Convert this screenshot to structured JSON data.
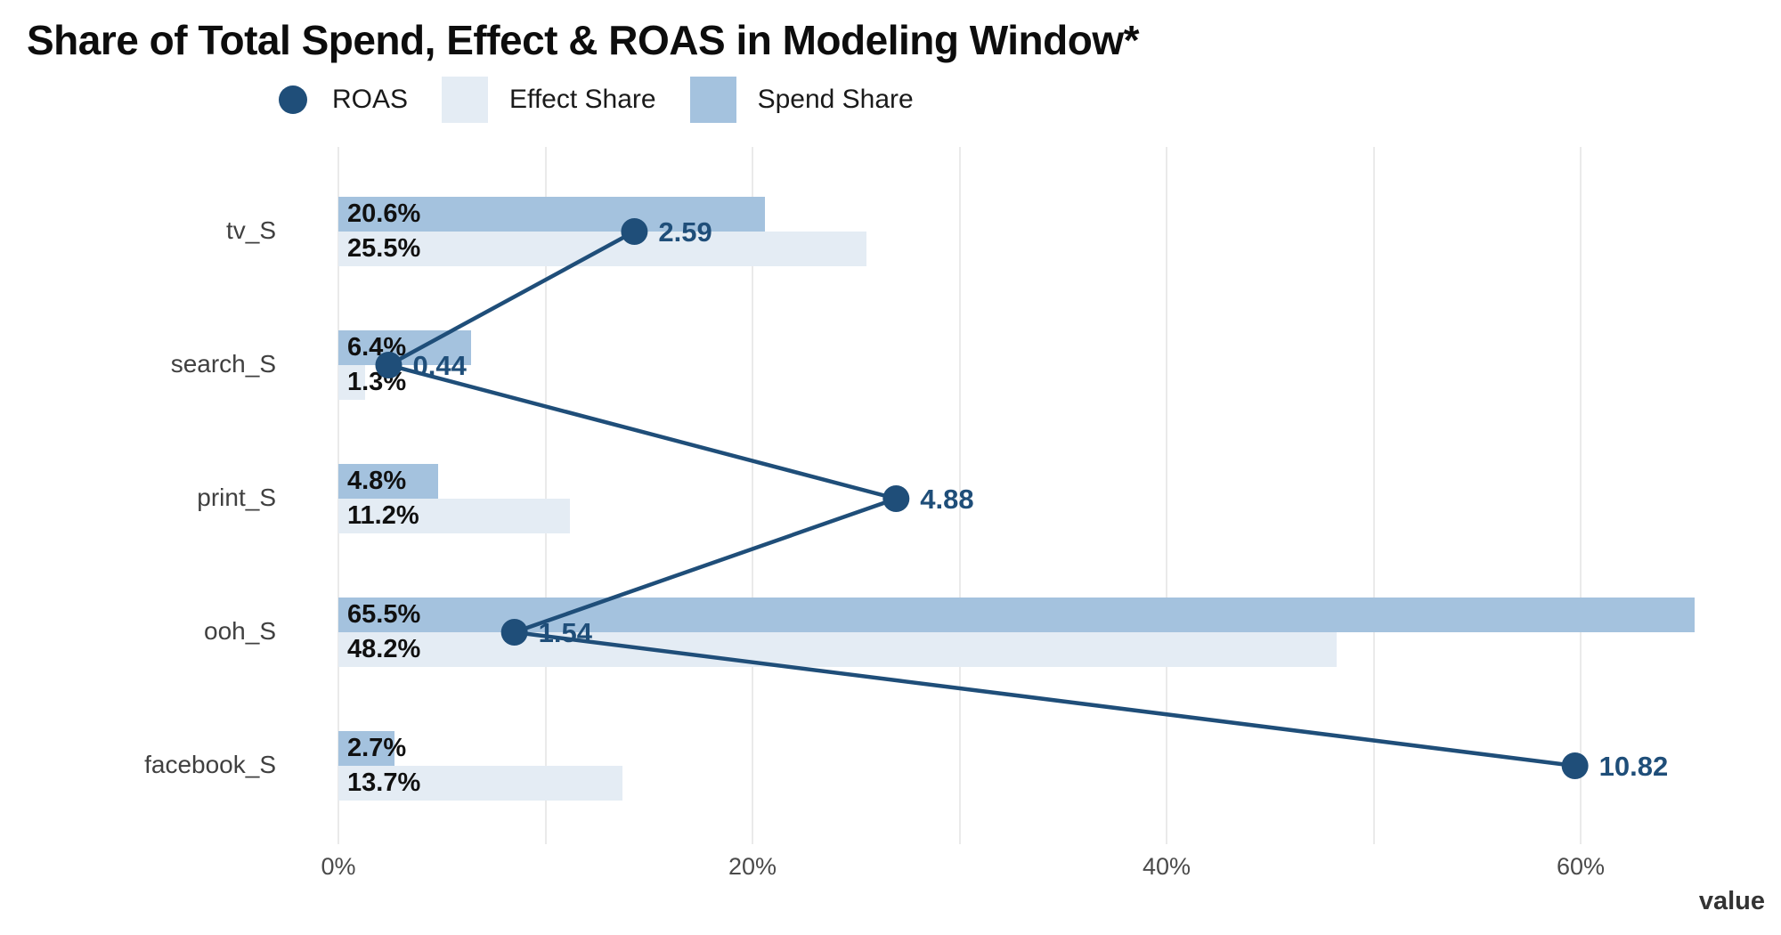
{
  "title": "Share of Total Spend, Effect & ROAS in Modeling Window*",
  "legend": {
    "items": [
      {
        "label": "ROAS",
        "key": "dot",
        "color": "#1f4e79"
      },
      {
        "label": "Effect Share",
        "key": "square",
        "color": "#e4ecf4"
      },
      {
        "label": "Spend Share",
        "key": "square",
        "color": "#a4c2de"
      }
    ]
  },
  "colors": {
    "roas": "#1f4e79",
    "spend_share": "#a4c2de",
    "effect_share": "#e4ecf4",
    "gridline": "#eaeaea"
  },
  "chart_data": {
    "type": "bar",
    "orientation": "horizontal",
    "title": "Share of Total Spend, Effect & ROAS in Modeling Window*",
    "categories": [
      "tv_S",
      "search_S",
      "print_S",
      "ooh_S",
      "facebook_S"
    ],
    "series": [
      {
        "name": "Spend Share",
        "type": "bar",
        "unit": "%",
        "color": "#a4c2de",
        "values": [
          20.6,
          6.4,
          4.8,
          65.5,
          2.7
        ],
        "labels": [
          "20.6%",
          "6.4%",
          "4.8%",
          "65.5%",
          "2.7%"
        ]
      },
      {
        "name": "Effect Share",
        "type": "bar",
        "unit": "%",
        "color": "#e4ecf4",
        "values": [
          25.5,
          1.3,
          11.2,
          48.2,
          13.7
        ],
        "labels": [
          "25.5%",
          "1.3%",
          "11.2%",
          "48.2%",
          "13.7%"
        ]
      },
      {
        "name": "ROAS",
        "type": "line+marker",
        "color": "#1f4e79",
        "values": [
          2.59,
          0.44,
          4.88,
          1.54,
          10.82
        ],
        "labels": [
          "2.59",
          "0.44",
          "4.88",
          "1.54",
          "10.82"
        ]
      }
    ],
    "xlabel": "value",
    "x_ticks": [
      "0%",
      "20%",
      "40%",
      "60%"
    ],
    "x_tick_values": [
      0,
      20,
      40,
      60
    ],
    "xlim": [
      0,
      69.6
    ],
    "gridline_values": [
      0,
      10,
      20,
      30,
      40,
      50,
      60
    ],
    "grid": "vertical-only",
    "legend_position": "top-left",
    "roas_percent_per_unit": 5.52
  }
}
